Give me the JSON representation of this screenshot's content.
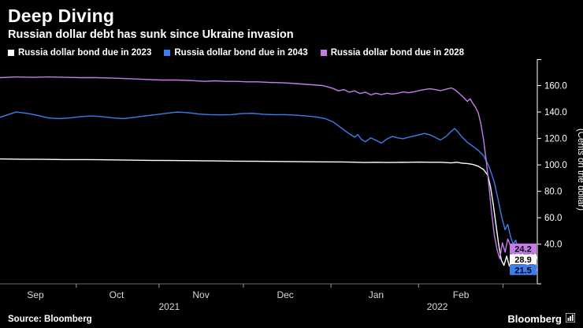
{
  "header": {
    "title": "Deep Diving",
    "subtitle": "Russian dollar debt has sunk since Ukraine invasion"
  },
  "footer": {
    "source": "Source: Bloomberg",
    "brand": "Bloomberg"
  },
  "chart_data": {
    "type": "line",
    "title": "Deep Diving",
    "subtitle": "Russian dollar debt has sunk since Ukraine invasion",
    "ylabel": "(Cents on the dollar)",
    "ylim": [
      10,
      180
    ],
    "yticks": [
      160,
      140,
      120,
      100,
      80,
      60,
      40
    ],
    "months": [
      {
        "label": "Sep",
        "pct": 6.6
      },
      {
        "label": "Oct",
        "pct": 21.7
      },
      {
        "label": "Nov",
        "pct": 37.4
      },
      {
        "label": "Dec",
        "pct": 53.1
      },
      {
        "label": "Jan",
        "pct": 70.0
      },
      {
        "label": "Feb",
        "pct": 85.8
      }
    ],
    "month_ticks": [
      14.2,
      29.6,
      45.3,
      61.6,
      77.9,
      93.6
    ],
    "years": [
      {
        "label": "2021",
        "pct": 31.5
      },
      {
        "label": "2022",
        "pct": 81.4
      }
    ],
    "end_labels": [
      {
        "label": "24.2",
        "value": 24.2,
        "bg": "#c47ce8",
        "fg": "#000000"
      },
      {
        "label": "28.9",
        "value": 28.9,
        "bg": "#ffffff",
        "fg": "#000000"
      },
      {
        "label": "21.5",
        "value": 21.5,
        "bg": "#3c7ef0",
        "fg": "#000000"
      }
    ],
    "series": [
      {
        "id": "due-2023",
        "label": "Russia dollar bond due in 2023",
        "color": "#ffffff",
        "points": [
          [
            0,
            104.5
          ],
          [
            4,
            104.3
          ],
          [
            8,
            104.2
          ],
          [
            12,
            104.0
          ],
          [
            16,
            104.0
          ],
          [
            20,
            103.8
          ],
          [
            24,
            103.6
          ],
          [
            28,
            103.4
          ],
          [
            32,
            103.3
          ],
          [
            36,
            103.2
          ],
          [
            40,
            103.0
          ],
          [
            44,
            102.8
          ],
          [
            48,
            102.7
          ],
          [
            52,
            102.6
          ],
          [
            56,
            102.4
          ],
          [
            60,
            102.3
          ],
          [
            64,
            102.2
          ],
          [
            68,
            101.8
          ],
          [
            70,
            102.0
          ],
          [
            72,
            101.8
          ],
          [
            74,
            101.9
          ],
          [
            76,
            102.0
          ],
          [
            78,
            102.1
          ],
          [
            80,
            102.0
          ],
          [
            82,
            102.0
          ],
          [
            84,
            101.5
          ],
          [
            85,
            102.0
          ],
          [
            86,
            101.3
          ],
          [
            87,
            101.0
          ],
          [
            88,
            100.3
          ],
          [
            89,
            99.0
          ],
          [
            90,
            96.5
          ],
          [
            90.8,
            92.0
          ],
          [
            91.3,
            83.0
          ],
          [
            91.8,
            70.0
          ],
          [
            92.3,
            55.0
          ],
          [
            92.8,
            40.0
          ],
          [
            93.3,
            28.0
          ],
          [
            93.8,
            24.0
          ],
          [
            94.3,
            31.0
          ],
          [
            94.8,
            23.5
          ],
          [
            95.3,
            27.0
          ],
          [
            95.8,
            36.0
          ],
          [
            96.3,
            30.0
          ],
          [
            96.8,
            37.0
          ],
          [
            97.3,
            32.0
          ],
          [
            97.8,
            25.0
          ],
          [
            98.3,
            24.0
          ],
          [
            98.8,
            33.0
          ],
          [
            99.4,
            34.0
          ],
          [
            100,
            28.9
          ]
        ]
      },
      {
        "id": "due-2043",
        "label": "Russia dollar bond due in 2043",
        "color": "#3c7ef0",
        "points": [
          [
            0,
            136.0
          ],
          [
            1.5,
            138.0
          ],
          [
            3,
            140.0
          ],
          [
            5,
            139.0
          ],
          [
            7,
            137.5
          ],
          [
            9,
            135.5
          ],
          [
            11,
            135.0
          ],
          [
            13,
            135.5
          ],
          [
            15,
            136.5
          ],
          [
            17,
            137.0
          ],
          [
            19,
            136.5
          ],
          [
            21,
            135.5
          ],
          [
            23,
            135.0
          ],
          [
            25,
            136.0
          ],
          [
            27,
            137.0
          ],
          [
            29,
            138.0
          ],
          [
            31,
            139.0
          ],
          [
            33,
            140.0
          ],
          [
            35,
            139.5
          ],
          [
            37,
            138.5
          ],
          [
            39,
            138.0
          ],
          [
            41,
            137.8
          ],
          [
            43,
            138.0
          ],
          [
            45,
            138.8
          ],
          [
            47,
            139.0
          ],
          [
            49,
            138.3
          ],
          [
            51,
            138.0
          ],
          [
            53,
            138.0
          ],
          [
            55,
            137.6
          ],
          [
            57,
            137.0
          ],
          [
            59,
            136.2
          ],
          [
            60.5,
            135.0
          ],
          [
            62,
            132.5
          ],
          [
            63,
            129.5
          ],
          [
            64,
            126.5
          ],
          [
            65,
            123.5
          ],
          [
            66,
            121.0
          ],
          [
            66.6,
            123.0
          ],
          [
            67.2,
            119.5
          ],
          [
            68,
            117.5
          ],
          [
            69,
            120.5
          ],
          [
            70,
            118.5
          ],
          [
            71,
            116.5
          ],
          [
            72,
            119.5
          ],
          [
            73,
            121.5
          ],
          [
            74,
            120.5
          ],
          [
            75,
            119.8
          ],
          [
            76,
            120.8
          ],
          [
            77,
            121.8
          ],
          [
            78,
            122.8
          ],
          [
            79,
            123.8
          ],
          [
            80,
            122.8
          ],
          [
            81,
            120.8
          ],
          [
            82,
            118.8
          ],
          [
            83,
            121.5
          ],
          [
            84,
            125.5
          ],
          [
            84.6,
            127.5
          ],
          [
            85.2,
            125.0
          ],
          [
            86,
            121.0
          ],
          [
            87,
            117.0
          ],
          [
            88,
            114.0
          ],
          [
            89,
            111.0
          ],
          [
            90,
            107.0
          ],
          [
            91,
            99.0
          ],
          [
            92,
            87.0
          ],
          [
            92.8,
            72.0
          ],
          [
            93.4,
            60.0
          ],
          [
            94,
            51.0
          ],
          [
            94.5,
            55.0
          ],
          [
            95,
            46.0
          ],
          [
            95.5,
            40.0
          ],
          [
            96,
            43.0
          ],
          [
            96.5,
            35.0
          ],
          [
            97,
            30.0
          ],
          [
            97.5,
            27.0
          ],
          [
            98,
            24.0
          ],
          [
            98.5,
            21.0
          ],
          [
            99,
            18.5
          ],
          [
            99.5,
            17.5
          ],
          [
            100,
            21.5
          ]
        ]
      },
      {
        "id": "due-2028",
        "label": "Russia dollar bond due in 2028",
        "color": "#c47ce8",
        "points": [
          [
            0,
            166.0
          ],
          [
            3,
            166.5
          ],
          [
            6,
            166.2
          ],
          [
            9,
            166.5
          ],
          [
            12,
            166.2
          ],
          [
            15,
            166.0
          ],
          [
            18,
            166.0
          ],
          [
            21,
            165.6
          ],
          [
            24,
            165.2
          ],
          [
            27,
            164.7
          ],
          [
            30,
            164.2
          ],
          [
            33,
            164.2
          ],
          [
            36,
            163.7
          ],
          [
            38,
            163.2
          ],
          [
            40,
            163.6
          ],
          [
            42,
            163.2
          ],
          [
            44,
            163.2
          ],
          [
            46,
            162.8
          ],
          [
            48,
            162.8
          ],
          [
            50,
            162.4
          ],
          [
            52,
            162.2
          ],
          [
            54,
            161.8
          ],
          [
            56,
            161.2
          ],
          [
            58,
            160.6
          ],
          [
            60,
            160.0
          ],
          [
            61,
            159.0
          ],
          [
            62,
            157.8
          ],
          [
            63,
            156.0
          ],
          [
            64,
            157.0
          ],
          [
            65,
            155.0
          ],
          [
            66,
            156.0
          ],
          [
            67,
            154.0
          ],
          [
            68,
            155.0
          ],
          [
            69,
            153.0
          ],
          [
            70,
            154.2
          ],
          [
            71,
            153.2
          ],
          [
            72,
            154.2
          ],
          [
            73,
            153.6
          ],
          [
            74,
            154.2
          ],
          [
            75,
            155.2
          ],
          [
            76,
            154.6
          ],
          [
            77,
            155.2
          ],
          [
            78,
            156.2
          ],
          [
            79,
            157.0
          ],
          [
            80,
            157.6
          ],
          [
            81,
            157.0
          ],
          [
            82,
            156.2
          ],
          [
            83,
            157.2
          ],
          [
            84,
            158.2
          ],
          [
            84.6,
            157.0
          ],
          [
            85.2,
            155.0
          ],
          [
            86,
            152.0
          ],
          [
            87,
            148.0
          ],
          [
            87.5,
            150.0
          ],
          [
            88,
            146.5
          ],
          [
            88.5,
            143.5
          ],
          [
            89,
            139.5
          ],
          [
            89.5,
            131.0
          ],
          [
            90,
            119.0
          ],
          [
            90.5,
            103.0
          ],
          [
            91,
            84.0
          ],
          [
            91.5,
            64.0
          ],
          [
            92,
            47.0
          ],
          [
            92.5,
            36.0
          ],
          [
            93,
            29.0
          ],
          [
            93.5,
            41.0
          ],
          [
            94,
            34.0
          ],
          [
            94.5,
            44.0
          ],
          [
            95,
            39.0
          ],
          [
            95.5,
            32.0
          ],
          [
            96,
            35.0
          ],
          [
            96.5,
            29.5
          ],
          [
            97,
            31.5
          ],
          [
            97.5,
            27.5
          ],
          [
            98,
            29.5
          ],
          [
            98.5,
            25.5
          ],
          [
            99,
            27.5
          ],
          [
            99.5,
            24.5
          ],
          [
            100,
            24.2
          ]
        ]
      }
    ]
  }
}
